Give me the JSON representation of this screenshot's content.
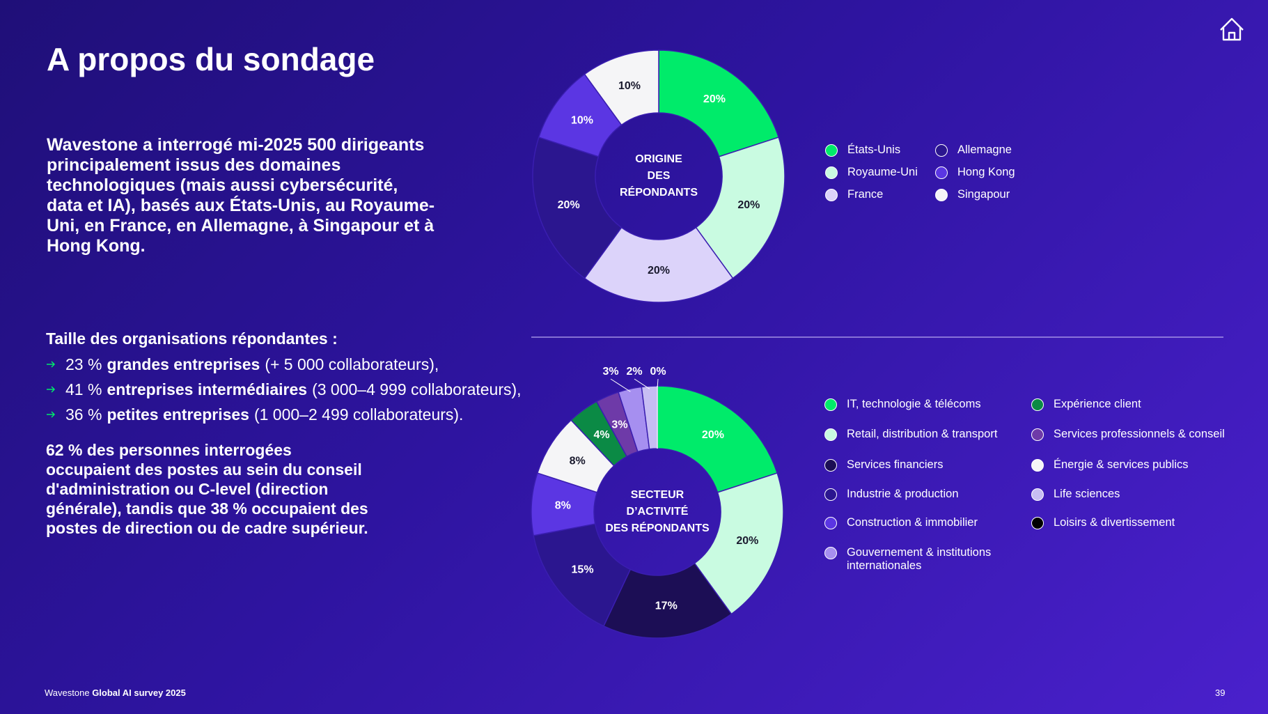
{
  "header": {
    "title": "A propos du sondage"
  },
  "intro": "Wavestone a interrogé mi-2025 500 dirigeants principalement issus des domaines technologiques (mais aussi cybersécurité, data et IA), basés aux États-Unis, au Royaume-Uni, en France, en Allemagne, à Singapour et à Hong Kong.",
  "sizes": {
    "heading": "Taille des organisations répondantes :",
    "items": [
      {
        "share": "23 %",
        "bold": "grandes entreprises",
        "detail": "(+ 5 000 collaborateurs),"
      },
      {
        "share": "41 %",
        "bold": "entreprises intermédiaires",
        "detail": "(3 000–4 999 collaborateurs),"
      },
      {
        "share": "36 %",
        "bold": "petites entreprises",
        "detail": "(1 000–2 499 collaborateurs)."
      }
    ]
  },
  "roles": "62 % des personnes interrogées occupaient des postes au sein du conseil d'administration ou C-level (direction générale), tandis que 38 % occupaient des postes de direction ou de cadre supérieur.",
  "footer": {
    "brand": "Wavestone",
    "survey": "Global AI survey 2025",
    "page": "39"
  },
  "chart_data": [
    {
      "type": "pie",
      "center_label": [
        "ORIGINE",
        "DES",
        "RÉPONDANTS"
      ],
      "categories": [
        "États-Unis",
        "Royaume-Uni",
        "France",
        "Allemagne",
        "Hong Kong",
        "Singapour"
      ],
      "values": [
        20,
        20,
        20,
        20,
        10,
        10
      ],
      "value_labels": [
        "20%",
        "20%",
        "20%",
        "20%",
        "10%",
        "10%"
      ],
      "colors": [
        "#00eb6a",
        "#c9fbe1",
        "#dcd3fa",
        "#2b168f",
        "#5b36e3",
        "#f5f5f7"
      ]
    },
    {
      "type": "pie",
      "center_label": [
        "SECTEUR",
        "D’ACTIVITÉ",
        "DES RÉPONDANTS"
      ],
      "categories": [
        "IT, technologie & télécoms",
        "Retail, distribution & transport",
        "Services financiers",
        "Industrie & production",
        "Construction & immobilier",
        "Énergie & services publics",
        "Expérience client",
        "Services professionnels & conseil",
        "Gouvernement & institutions internationales",
        "Life sciences",
        "Loisirs & divertissement"
      ],
      "values": [
        20,
        20,
        17,
        15,
        8,
        8,
        4,
        3,
        3,
        2,
        0
      ],
      "value_labels": [
        "20%",
        "20%",
        "17%",
        "15%",
        "8%",
        "8%",
        "4%",
        "3%",
        "3%",
        "2%",
        "0%"
      ],
      "colors": [
        "#00eb6a",
        "#c9fbe1",
        "#1c0e55",
        "#2b168f",
        "#5b36e3",
        "#f5f5f7",
        "#0b8a45",
        "#6e3aa8",
        "#a68ff0",
        "#c7bdf3",
        "#000000"
      ]
    }
  ]
}
